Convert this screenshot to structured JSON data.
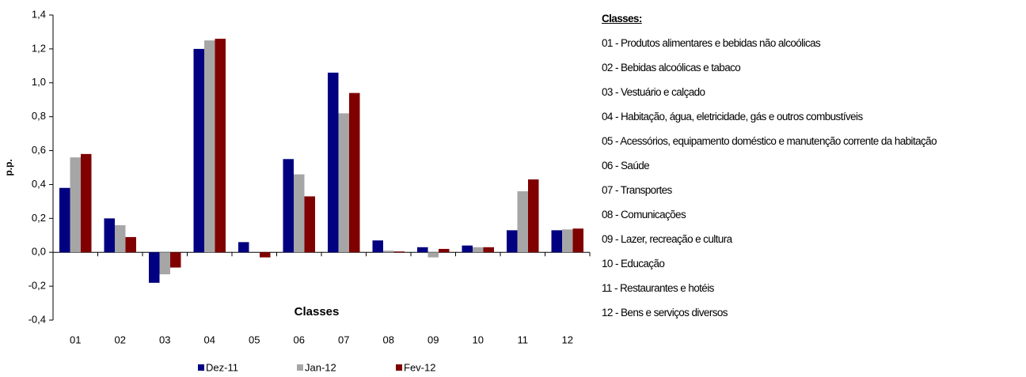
{
  "chart_data": {
    "type": "bar",
    "x_label": "Classes",
    "y_label": "p.p.",
    "categories": [
      "01",
      "02",
      "03",
      "04",
      "05",
      "06",
      "07",
      "08",
      "09",
      "10",
      "11",
      "12"
    ],
    "series": [
      {
        "name": "Dez-11",
        "color": "#000080",
        "values": [
          0.38,
          0.2,
          -0.18,
          1.2,
          0.06,
          0.55,
          1.06,
          0.07,
          0.03,
          0.04,
          0.13,
          0.13
        ]
      },
      {
        "name": "Jan-12",
        "color": "#a6a6a6",
        "values": [
          0.56,
          0.16,
          -0.13,
          1.25,
          0.0,
          0.46,
          0.82,
          0.01,
          -0.03,
          0.03,
          0.36,
          0.135
        ]
      },
      {
        "name": "Fev-12",
        "color": "#800000",
        "values": [
          0.58,
          0.09,
          -0.09,
          1.26,
          -0.03,
          0.33,
          0.94,
          0.005,
          0.02,
          0.03,
          0.43,
          0.14
        ]
      }
    ],
    "ylim": [
      -0.4,
      1.4
    ],
    "yticks": [
      {
        "value": -0.4,
        "label": "-0,4"
      },
      {
        "value": -0.2,
        "label": "-0,2"
      },
      {
        "value": 0,
        "label": "0,0"
      },
      {
        "value": 0.2,
        "label": "0,2"
      },
      {
        "value": 0.4,
        "label": "0,4"
      },
      {
        "value": 0.6,
        "label": "0,6"
      },
      {
        "value": 0.8,
        "label": "0,8"
      },
      {
        "value": 1.0,
        "label": "1,0"
      },
      {
        "value": 1.2,
        "label": "1,2"
      },
      {
        "value": 1.4,
        "label": "1,4"
      }
    ],
    "grid": false,
    "legend": "bottom"
  },
  "class_list": {
    "title": "Classes:",
    "items": [
      "01 - Produtos alimentares e bebidas não alcoólicas",
      "02 - Bebidas alcoólicas e tabaco",
      "03 - Vestuário e calçado",
      "04 - Habitação, água, eletricidade, gás e outros combustíveis",
      "05 - Acessórios, equipamento doméstico e manutenção corrente da habitação",
      "06 - Saúde",
      "07 - Transportes",
      "08 - Comunicações",
      "09 - Lazer, recreação e cultura",
      "10 - Educação",
      "11 - Restaurantes e hotéis",
      "12 - Bens e serviços diversos"
    ]
  }
}
